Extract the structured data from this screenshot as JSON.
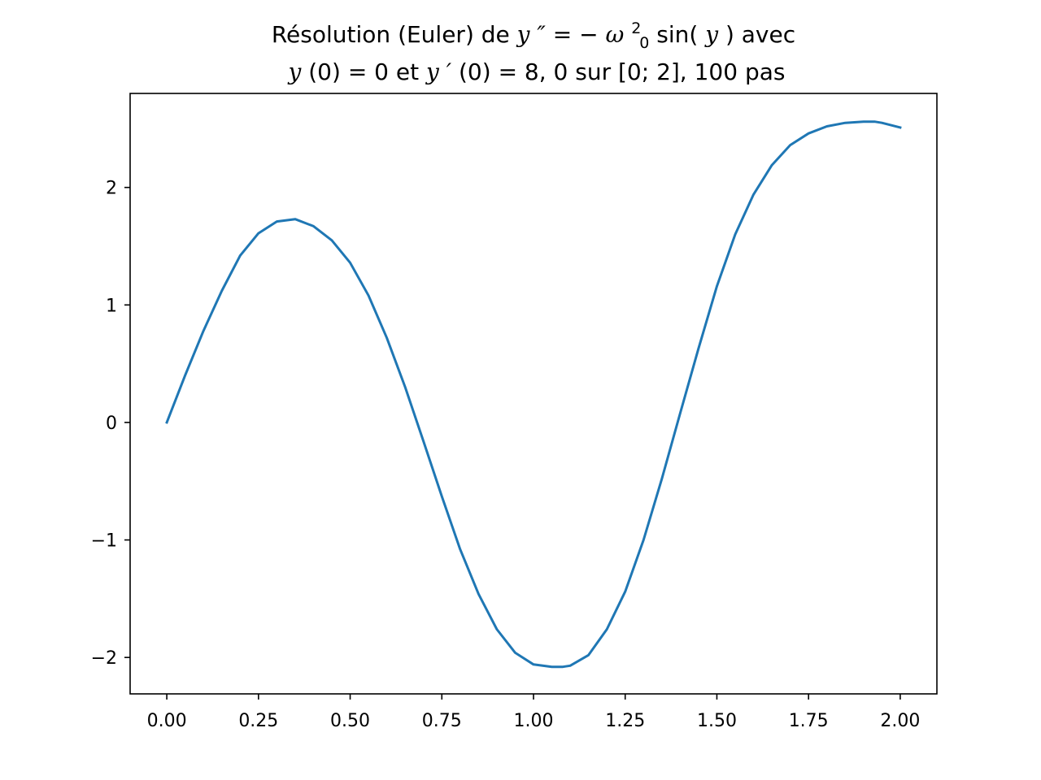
{
  "chart_data": {
    "type": "line",
    "title": {
      "line1": {
        "prefix": "Résolution (Euler) de  ",
        "y": "y",
        "prime2": "″",
        "eq": " = −",
        "omega": "ω",
        "sup": "2",
        "sub": "0",
        "sin": "sin(",
        "y2": "y",
        "suffix": ") avec"
      },
      "line2": {
        "y": "y",
        "a": "(0) = 0 et ",
        "y2": "y",
        "prime": "′",
        "b": "(0) = 8, 0 sur [0; 2], 100 pas"
      }
    },
    "xlabel": "",
    "ylabel": "",
    "xlim": [
      -0.1,
      2.1
    ],
    "ylim": [
      -2.31,
      2.8
    ],
    "xticks": [
      0.0,
      0.25,
      0.5,
      0.75,
      1.0,
      1.25,
      1.5,
      1.75,
      2.0
    ],
    "xtick_labels": [
      "0.00",
      "0.25",
      "0.50",
      "0.75",
      "1.00",
      "1.25",
      "1.50",
      "1.75",
      "2.00"
    ],
    "yticks": [
      -2,
      -1,
      0,
      1,
      2
    ],
    "ytick_labels": [
      "−2",
      "−1",
      "0",
      "1",
      "2"
    ],
    "grid": false,
    "series": [
      {
        "color": "#1f77b4",
        "x": [
          0.0,
          0.05,
          0.1,
          0.15,
          0.2,
          0.25,
          0.3,
          0.35,
          0.4,
          0.45,
          0.5,
          0.55,
          0.6,
          0.65,
          0.7,
          0.75,
          0.8,
          0.85,
          0.9,
          0.95,
          1.0,
          1.05,
          1.08,
          1.1,
          1.15,
          1.2,
          1.25,
          1.3,
          1.35,
          1.4,
          1.45,
          1.5,
          1.55,
          1.6,
          1.65,
          1.7,
          1.75,
          1.8,
          1.85,
          1.9,
          1.93,
          1.95,
          2.0
        ],
        "y": [
          0.0,
          0.4,
          0.78,
          1.12,
          1.42,
          1.61,
          1.71,
          1.73,
          1.67,
          1.55,
          1.36,
          1.08,
          0.72,
          0.3,
          -0.16,
          -0.63,
          -1.08,
          -1.46,
          -1.76,
          -1.96,
          -2.06,
          -2.08,
          -2.08,
          -2.07,
          -1.98,
          -1.76,
          -1.44,
          -1.0,
          -0.48,
          0.08,
          0.63,
          1.16,
          1.6,
          1.94,
          2.19,
          2.36,
          2.46,
          2.52,
          2.55,
          2.56,
          2.56,
          2.55,
          2.51
        ]
      }
    ]
  }
}
